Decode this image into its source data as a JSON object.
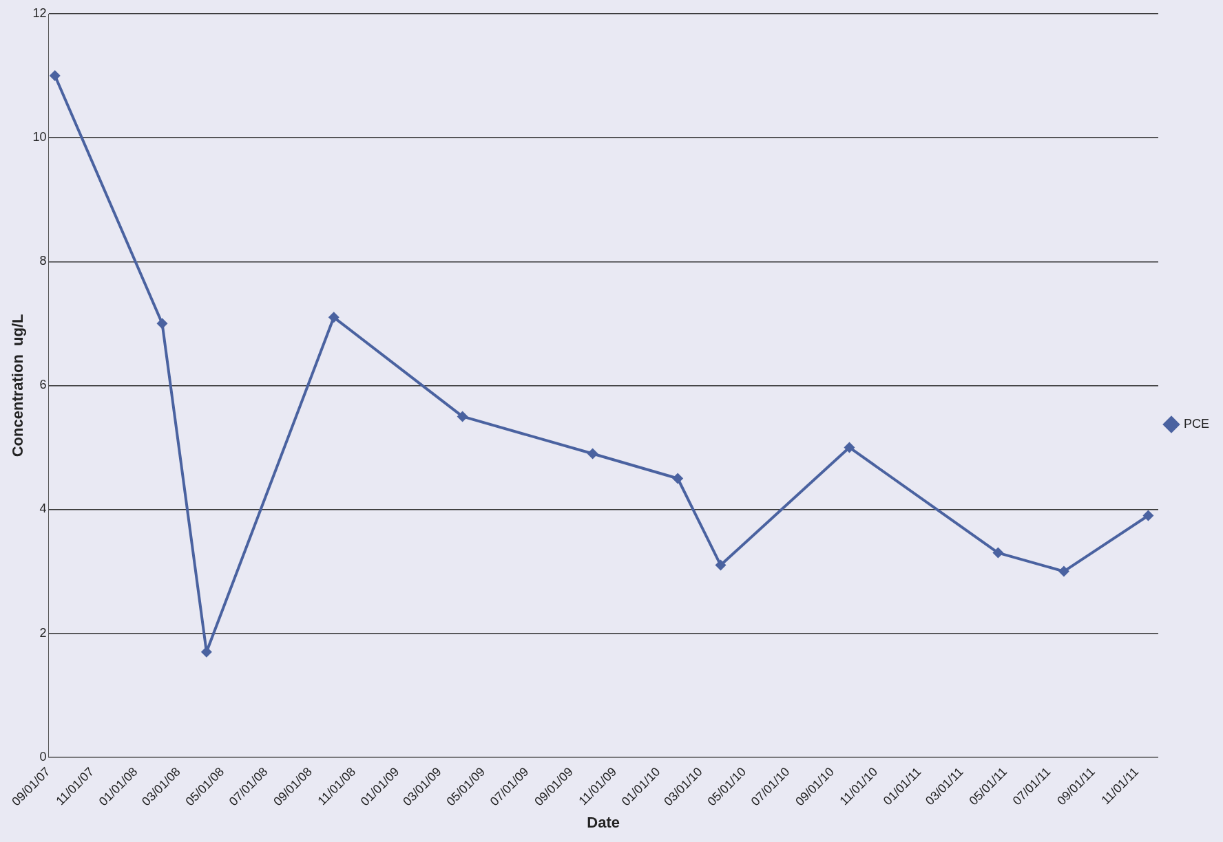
{
  "chart_data": {
    "type": "line",
    "xlabel": "Date",
    "ylabel": "Concentration  ug/L",
    "x": [
      "2007-09-10",
      "2008-02-07",
      "2008-04-09",
      "2008-10-04",
      "2009-04-02",
      "2009-10-01",
      "2010-01-28",
      "2010-03-29",
      "2010-09-25",
      "2011-04-21",
      "2011-07-22",
      "2011-11-17"
    ],
    "series": [
      {
        "name": "PCE",
        "color": "#4a62a0",
        "values": [
          11.0,
          7.0,
          1.7,
          7.1,
          5.5,
          4.9,
          4.5,
          3.1,
          5.0,
          3.3,
          3.0,
          3.9
        ]
      }
    ],
    "xlim": [
      "2007-09-01",
      "2011-12-01"
    ],
    "xticks": [
      {
        "value": "2007-09-01",
        "label": "09/01/07"
      },
      {
        "value": "2007-11-01",
        "label": "11/01/07"
      },
      {
        "value": "2008-01-01",
        "label": "01/01/08"
      },
      {
        "value": "2008-03-01",
        "label": "03/01/08"
      },
      {
        "value": "2008-05-01",
        "label": "05/01/08"
      },
      {
        "value": "2008-07-01",
        "label": "07/01/08"
      },
      {
        "value": "2008-09-01",
        "label": "09/01/08"
      },
      {
        "value": "2008-11-01",
        "label": "11/01/08"
      },
      {
        "value": "2009-01-01",
        "label": "01/01/09"
      },
      {
        "value": "2009-03-01",
        "label": "03/01/09"
      },
      {
        "value": "2009-05-01",
        "label": "05/01/09"
      },
      {
        "value": "2009-07-01",
        "label": "07/01/09"
      },
      {
        "value": "2009-09-01",
        "label": "09/01/09"
      },
      {
        "value": "2009-11-01",
        "label": "11/01/09"
      },
      {
        "value": "2010-01-01",
        "label": "01/01/10"
      },
      {
        "value": "2010-03-01",
        "label": "03/01/10"
      },
      {
        "value": "2010-05-01",
        "label": "05/01/10"
      },
      {
        "value": "2010-07-01",
        "label": "07/01/10"
      },
      {
        "value": "2010-09-01",
        "label": "09/01/10"
      },
      {
        "value": "2010-11-01",
        "label": "11/01/10"
      },
      {
        "value": "2011-01-01",
        "label": "01/01/11"
      },
      {
        "value": "2011-03-01",
        "label": "03/01/11"
      },
      {
        "value": "2011-05-01",
        "label": "05/01/11"
      },
      {
        "value": "2011-07-01",
        "label": "07/01/11"
      },
      {
        "value": "2011-09-01",
        "label": "09/01/11"
      },
      {
        "value": "2011-11-01",
        "label": "11/01/11"
      }
    ],
    "ylim": [
      0,
      12
    ],
    "yticks": [
      0,
      2,
      4,
      6,
      8,
      10,
      12
    ],
    "grid": "y",
    "legend": "right",
    "marker": "diamond",
    "line_style": "solid"
  }
}
